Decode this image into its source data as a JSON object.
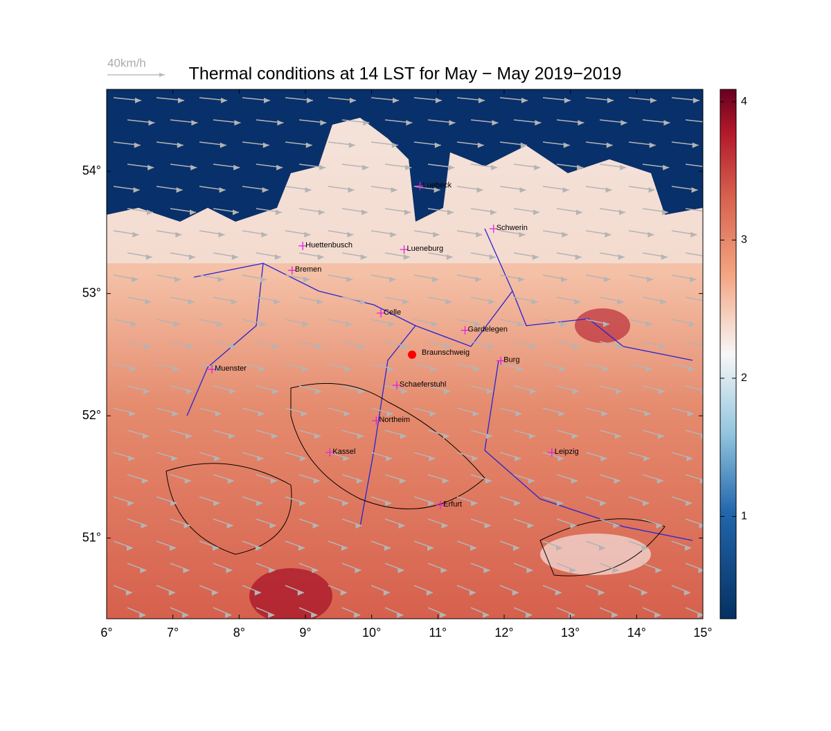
{
  "title": "Thermal conditions at 14 LST for May − May  2019−2019",
  "wind_legend": "40km/h",
  "xlim": [
    6,
    15.0
  ],
  "ylim": [
    50.34,
    54.67
  ],
  "xticks": [
    {
      "value": 6,
      "label": "6°"
    },
    {
      "value": 7,
      "label": "7°"
    },
    {
      "value": 8,
      "label": "8°"
    },
    {
      "value": 9,
      "label": "9°"
    },
    {
      "value": 10,
      "label": "10°"
    },
    {
      "value": 11,
      "label": "11°"
    },
    {
      "value": 12,
      "label": "12°"
    },
    {
      "value": 13,
      "label": "13°"
    },
    {
      "value": 14,
      "label": "14°"
    },
    {
      "value": 15,
      "label": "15°"
    }
  ],
  "yticks": [
    {
      "value": 51,
      "label": "51°"
    },
    {
      "value": 52,
      "label": "52°"
    },
    {
      "value": 53,
      "label": "53°"
    },
    {
      "value": 54,
      "label": "54°"
    }
  ],
  "colorbar": {
    "lim": [
      0.26,
      4.09
    ],
    "ticks": [
      1,
      2,
      3,
      4
    ]
  },
  "cities": [
    {
      "name": "Luebeck",
      "lon": 10.73,
      "lat": 53.88
    },
    {
      "name": "Schwerin",
      "lon": 11.84,
      "lat": 53.53
    },
    {
      "name": "Huettenbusch",
      "lon": 8.96,
      "lat": 53.39
    },
    {
      "name": "Lueneburg",
      "lon": 10.49,
      "lat": 53.36
    },
    {
      "name": "Bremen",
      "lon": 8.8,
      "lat": 53.19
    },
    {
      "name": "Celle",
      "lon": 10.14,
      "lat": 52.84
    },
    {
      "name": "Gardelegen",
      "lon": 11.41,
      "lat": 52.7
    },
    {
      "name": "Burg",
      "lon": 11.95,
      "lat": 52.45
    },
    {
      "name": "Muenster",
      "lon": 7.59,
      "lat": 52.38
    },
    {
      "name": "Schaeferstuhl",
      "lon": 10.38,
      "lat": 52.25
    },
    {
      "name": "Northeim",
      "lon": 10.07,
      "lat": 51.96
    },
    {
      "name": "Kassel",
      "lon": 9.37,
      "lat": 51.7
    },
    {
      "name": "Leipzig",
      "lon": 12.72,
      "lat": 51.7
    },
    {
      "name": "Erfurt",
      "lon": 11.04,
      "lat": 51.27
    }
  ],
  "station": {
    "name": "Braunschweig",
    "lon": 10.61,
    "lat": 52.5
  }
}
